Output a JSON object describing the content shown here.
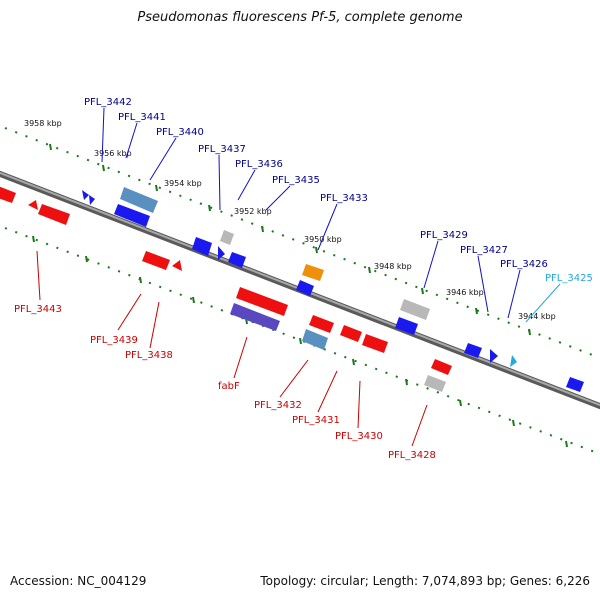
{
  "title": "Pseudomonas fluorescens Pf-5, complete genome",
  "footer": {
    "accession": "Accession: NC_004129",
    "summary": "Topology: circular; Length: 7,074,893 bp; Genes: 6,226"
  },
  "colors": {
    "forward_gene": "#1010ee",
    "reverse_gene": "#ee1010",
    "label_forward": "#00008b",
    "label_reverse": "#cc0000",
    "label_highlight": "#22aadd",
    "tick": "#1a7a1a",
    "backbone": "#808080"
  },
  "kbp_labels": [
    "3958 kbp",
    "3956 kbp",
    "3954 kbp",
    "3952 kbp",
    "3950 kbp",
    "3948 kbp",
    "3946 kbp",
    "3944 kbp"
  ],
  "forward_labels": [
    "PFL_3442",
    "PFL_3441",
    "PFL_3440",
    "PFL_3437",
    "PFL_3436",
    "PFL_3435",
    "PFL_3433",
    "PFL_3429",
    "PFL_3427",
    "PFL_3426"
  ],
  "highlight_label": "PFL_3425",
  "reverse_labels": [
    "PFL_3443",
    "PFL_3439",
    "PFL_3438",
    "fabF",
    "PFL_3432",
    "PFL_3431",
    "PFL_3430",
    "PFL_3428"
  ]
}
